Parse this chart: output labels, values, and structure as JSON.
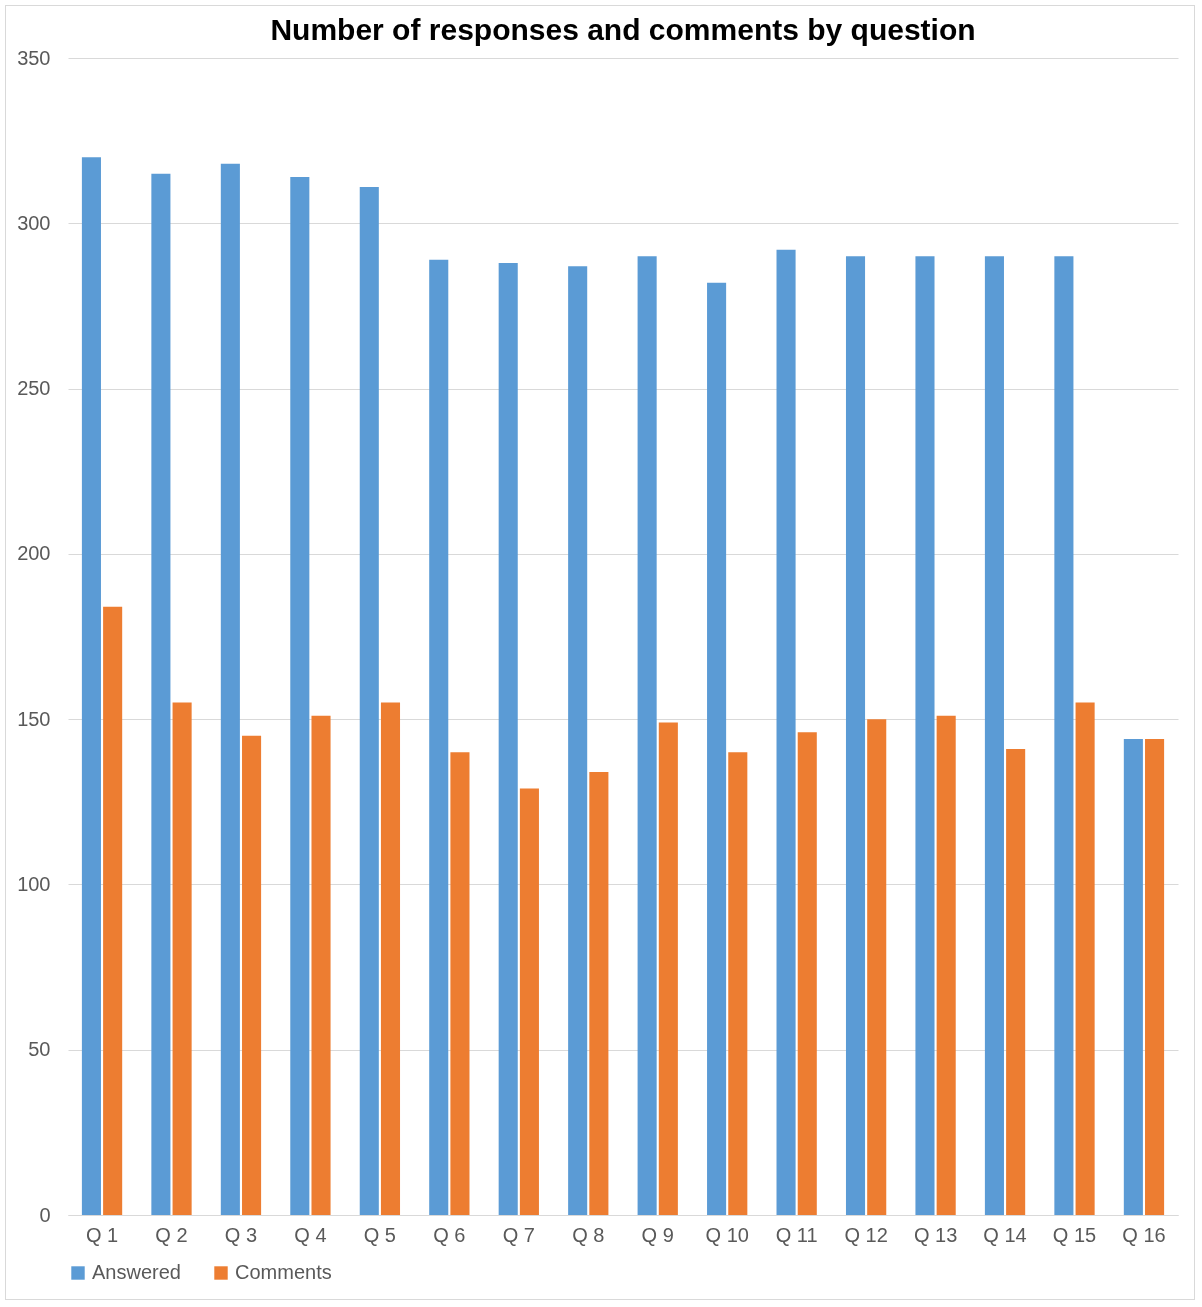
{
  "chart_data": {
    "type": "bar",
    "title": "Number of responses and comments by question",
    "categories": [
      "Q 1",
      "Q 2",
      "Q 3",
      "Q 4",
      "Q 5",
      "Q 6",
      "Q 7",
      "Q 8",
      "Q 9",
      "Q 10",
      "Q 11",
      "Q 12",
      "Q 13",
      "Q 14",
      "Q 15",
      "Q 16"
    ],
    "series": [
      {
        "name": "Answered",
        "color": "#5b9bd5",
        "values": [
          320,
          315,
          318,
          314,
          311,
          289,
          288,
          287,
          290,
          282,
          292,
          290,
          290,
          290,
          290,
          144
        ]
      },
      {
        "name": "Comments",
        "color": "#ed7d31",
        "values": [
          184,
          155,
          145,
          151,
          155,
          140,
          129,
          134,
          149,
          140,
          146,
          150,
          151,
          141,
          155,
          144
        ]
      }
    ],
    "ylim": [
      0,
      350
    ],
    "yticks": [
      0,
      50,
      100,
      150,
      200,
      250,
      300,
      350
    ],
    "grid": "y",
    "legend": "bottom"
  }
}
